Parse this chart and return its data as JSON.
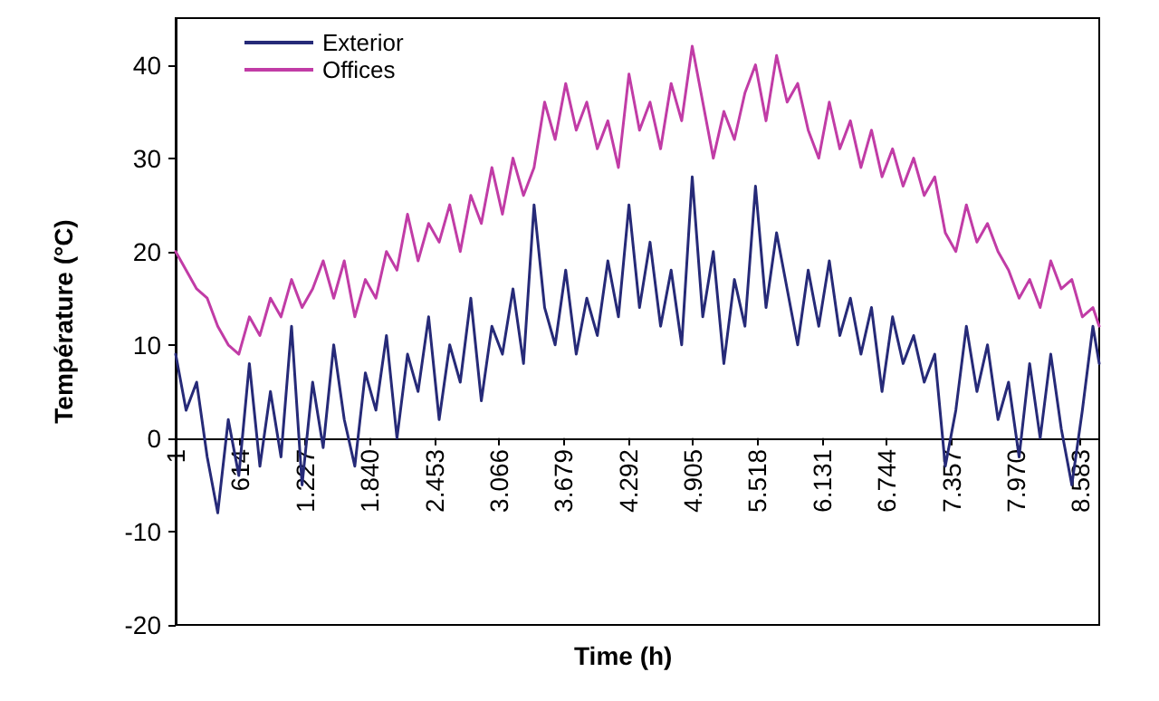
{
  "chart_data": {
    "type": "line",
    "xlabel": "Time (h)",
    "ylabel": "Température (°C)",
    "x": [
      1,
      100,
      200,
      300,
      400,
      500,
      600,
      700,
      800,
      900,
      1000,
      1100,
      1200,
      1300,
      1400,
      1500,
      1600,
      1700,
      1800,
      1900,
      2000,
      2100,
      2200,
      2300,
      2400,
      2500,
      2600,
      2700,
      2800,
      2900,
      3000,
      3100,
      3200,
      3300,
      3400,
      3500,
      3600,
      3700,
      3800,
      3900,
      4000,
      4100,
      4200,
      4300,
      4400,
      4500,
      4600,
      4700,
      4800,
      4900,
      5000,
      5100,
      5200,
      5300,
      5400,
      5500,
      5600,
      5700,
      5800,
      5900,
      6000,
      6100,
      6200,
      6300,
      6400,
      6500,
      6600,
      6700,
      6800,
      6900,
      7000,
      7100,
      7200,
      7300,
      7400,
      7500,
      7600,
      7700,
      7800,
      7900,
      8000,
      8100,
      8200,
      8300,
      8400,
      8500,
      8600,
      8700,
      8760
    ],
    "series": [
      {
        "name": "Exterior",
        "color": "#262a78",
        "values": [
          9,
          3,
          6,
          -2,
          -8,
          2,
          -4,
          8,
          -3,
          5,
          -2,
          12,
          -5,
          6,
          -1,
          10,
          2,
          -3,
          7,
          3,
          11,
          0,
          9,
          5,
          13,
          2,
          10,
          6,
          15,
          4,
          12,
          9,
          16,
          8,
          25,
          14,
          10,
          18,
          9,
          15,
          11,
          19,
          13,
          25,
          14,
          21,
          12,
          18,
          10,
          28,
          13,
          20,
          8,
          17,
          12,
          27,
          14,
          22,
          16,
          10,
          18,
          12,
          19,
          11,
          15,
          9,
          14,
          5,
          13,
          8,
          11,
          6,
          9,
          -3,
          3,
          12,
          5,
          10,
          2,
          6,
          -2,
          8,
          0,
          9,
          1,
          -5,
          3,
          12,
          8
        ]
      },
      {
        "name": "Offices",
        "color": "#c13ca6",
        "values": [
          20,
          18,
          16,
          15,
          12,
          10,
          9,
          13,
          11,
          15,
          13,
          17,
          14,
          16,
          19,
          15,
          19,
          13,
          17,
          15,
          20,
          18,
          24,
          19,
          23,
          21,
          25,
          20,
          26,
          23,
          29,
          24,
          30,
          26,
          29,
          36,
          32,
          38,
          33,
          36,
          31,
          34,
          29,
          39,
          33,
          36,
          31,
          38,
          34,
          42,
          36,
          30,
          35,
          32,
          37,
          40,
          34,
          41,
          36,
          38,
          33,
          30,
          36,
          31,
          34,
          29,
          33,
          28,
          31,
          27,
          30,
          26,
          28,
          22,
          20,
          25,
          21,
          23,
          20,
          18,
          15,
          17,
          14,
          19,
          16,
          17,
          13,
          14,
          12
        ]
      }
    ],
    "xlim": [
      1,
      8760
    ],
    "xticks": [
      1,
      614,
      {
        "value": 1227,
        "label": "1.227"
      },
      {
        "value": 1840,
        "label": "1.840"
      },
      {
        "value": 2453,
        "label": "2.453"
      },
      {
        "value": 3066,
        "label": "3.066"
      },
      {
        "value": 3679,
        "label": "3.679"
      },
      {
        "value": 4292,
        "label": "4.292"
      },
      {
        "value": 4905,
        "label": "4.905"
      },
      {
        "value": 5518,
        "label": "5.518"
      },
      {
        "value": 6131,
        "label": "6.131"
      },
      {
        "value": 6744,
        "label": "6.744"
      },
      {
        "value": 7357,
        "label": "7.357"
      },
      {
        "value": 7970,
        "label": "7.970"
      },
      {
        "value": 8583,
        "label": "8.583"
      }
    ],
    "ylim": [
      -20,
      45
    ],
    "yticks": [
      -20,
      -10,
      0,
      10,
      20,
      30,
      40
    ],
    "grid": false,
    "legend": "top left",
    "marker": "none",
    "line_style": "solid"
  }
}
